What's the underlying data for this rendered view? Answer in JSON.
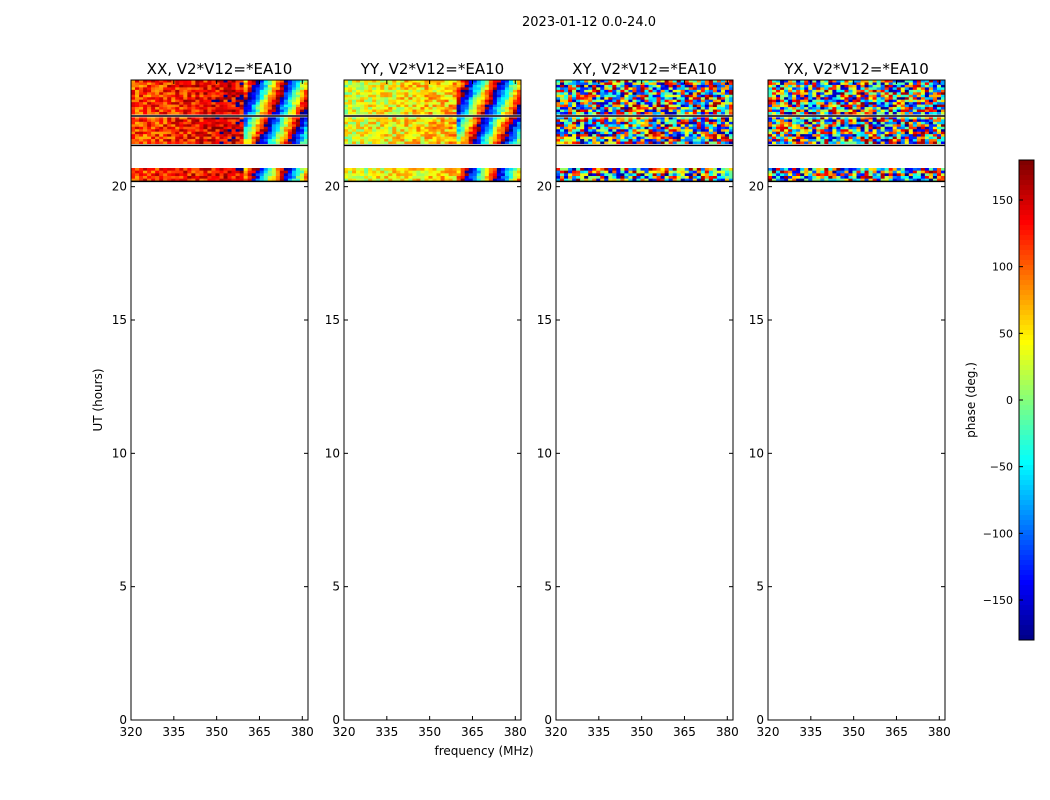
{
  "figure_title": "2023-01-12 0.0-24.0",
  "chart_data": {
    "type": "heatmap",
    "title": "2023-01-12 0.0-24.0",
    "xlabel": "frequency (MHz)",
    "ylabel": "UT (hours)",
    "xlim": [
      320,
      382
    ],
    "ylim": [
      0,
      24
    ],
    "x_ticks": [
      320,
      335,
      350,
      365,
      380
    ],
    "y_ticks": [
      0,
      5,
      10,
      15,
      20
    ],
    "panels": [
      {
        "title": "XX, V2*V12=*EA10",
        "mode": "smooth",
        "base_phase": 110
      },
      {
        "title": "YY, V2*V12=*EA10",
        "mode": "smooth",
        "base_phase": 30
      },
      {
        "title": "XY, V2*V12=*EA10",
        "mode": "noise",
        "base_phase": 0
      },
      {
        "title": "YX, V2*V12=*EA10",
        "mode": "noise",
        "base_phase": 0
      }
    ],
    "data_time_ranges": [
      [
        20.2,
        20.7
      ],
      [
        21.6,
        24.0
      ]
    ],
    "blank_time_ranges": [
      [
        22.6,
        22.7
      ],
      [
        21.5,
        21.6
      ]
    ],
    "colorbar": {
      "label": "phase (deg.)",
      "range": [
        -180,
        180
      ],
      "ticks": [
        150,
        100,
        50,
        0,
        -50,
        -100,
        -150
      ],
      "tick_labels": [
        "150",
        "100",
        "50",
        "0",
        "−50",
        "−100",
        "−150"
      ],
      "colormap": "jet"
    }
  }
}
